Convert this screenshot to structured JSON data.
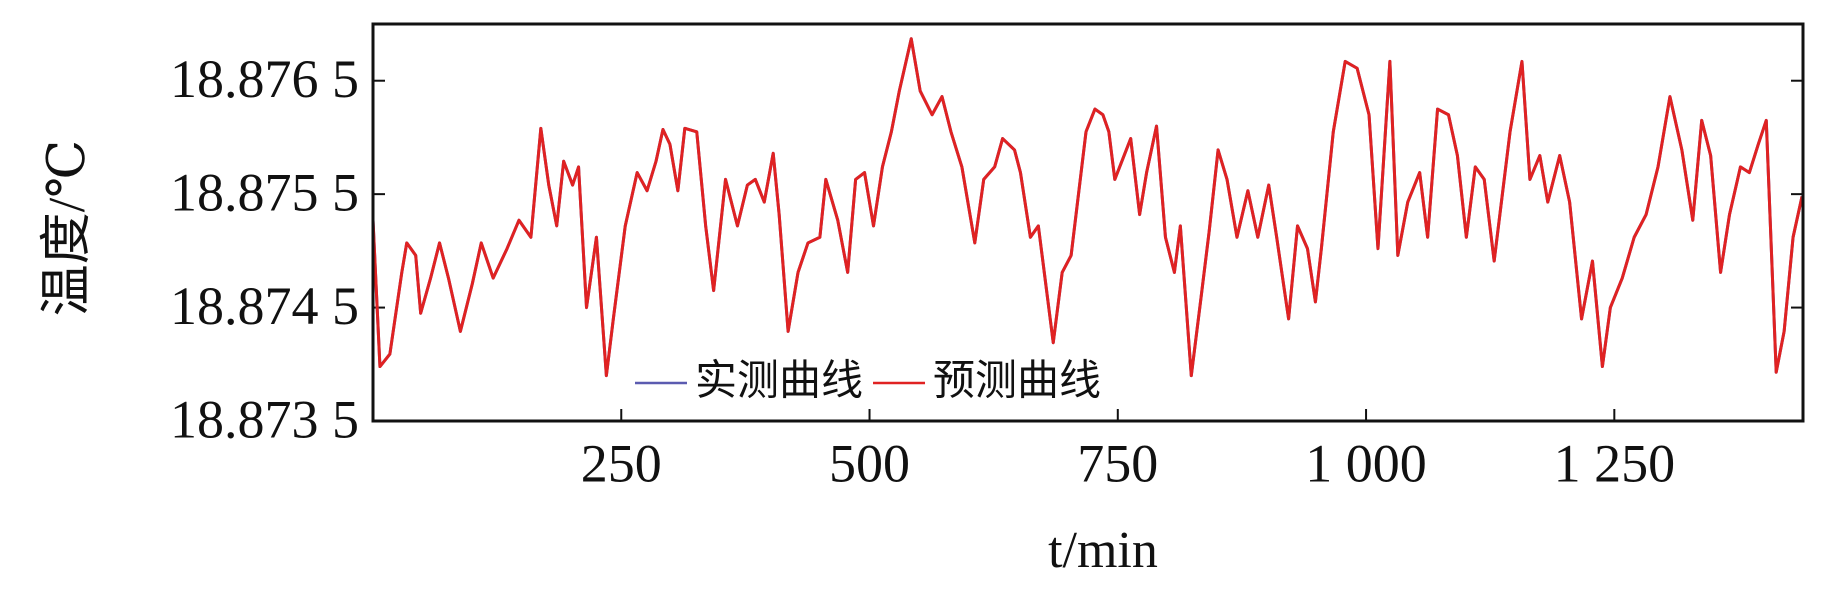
{
  "chart_data": {
    "type": "line",
    "xlabel": "t/min",
    "ylabel": "温度/℃",
    "xlim": [
      0,
      1440
    ],
    "ylim": [
      18.8735,
      18.877
    ],
    "xticks": [
      250,
      500,
      750,
      {
        "value": 1000,
        "label": "1 000"
      },
      {
        "value": 1250,
        "label": "1 250"
      }
    ],
    "yticks": [
      {
        "value": 18.8735,
        "label": "18.873 5"
      },
      {
        "value": 18.8745,
        "label": "18.874 5"
      },
      {
        "value": 18.8755,
        "label": "18.875 5"
      },
      {
        "value": 18.8765,
        "label": "18.876 5"
      }
    ],
    "legend": "lower left",
    "x": [
      0,
      7,
      17,
      29,
      34,
      43,
      48,
      58,
      67,
      76,
      88,
      100,
      109,
      121,
      135,
      147,
      159,
      169,
      177,
      185,
      192,
      201,
      207,
      215,
      225,
      235,
      242,
      254,
      266,
      276,
      285,
      292,
      299,
      307,
      314,
      326,
      335,
      343,
      355,
      367,
      377,
      385,
      394,
      403,
      409,
      418,
      428,
      438,
      450,
      456,
      468,
      478,
      486,
      495,
      504,
      513,
      522,
      530,
      542,
      551,
      563,
      573,
      582,
      593,
      606,
      615,
      626,
      634,
      646,
      652,
      662,
      670,
      685,
      694,
      703,
      718,
      727,
      735,
      741,
      747,
      763,
      772,
      779,
      789,
      798,
      807,
      813,
      824,
      834,
      842,
      851,
      860,
      870,
      881,
      891,
      902,
      910,
      922,
      931,
      941,
      949,
      955,
      967,
      979,
      991,
      1003,
      1012,
      1024,
      1032,
      1042,
      1054,
      1062,
      1072,
      1083,
      1092,
      1101,
      1110,
      1119,
      1129,
      1145,
      1157,
      1165,
      1175,
      1183,
      1195,
      1205,
      1217,
      1228,
      1238,
      1246,
      1258,
      1270,
      1282,
      1294,
      1306,
      1318,
      1329,
      1338,
      1347,
      1357,
      1366,
      1377,
      1386,
      1395,
      1403,
      1413,
      1421,
      1430,
      1439
    ],
    "series": [
      {
        "name": "实测曲线",
        "color": "#5b5bb0",
        "values": [
          18.87527,
          18.87398,
          18.87409,
          18.87481,
          18.87507,
          18.87496,
          18.87445,
          18.87476,
          18.87507,
          18.87476,
          18.87429,
          18.87471,
          18.87507,
          18.87476,
          18.87502,
          18.87527,
          18.87512,
          18.87608,
          18.87558,
          18.87522,
          18.87579,
          18.87558,
          18.87574,
          18.8745,
          18.87512,
          18.8739,
          18.8744,
          18.87522,
          18.87569,
          18.87553,
          18.87579,
          18.87607,
          18.87594,
          18.87553,
          18.87608,
          18.87605,
          18.87522,
          18.87465,
          18.87563,
          18.87522,
          18.87558,
          18.87563,
          18.87543,
          18.87586,
          18.87532,
          18.87429,
          18.87481,
          18.87507,
          18.87512,
          18.87563,
          18.87527,
          18.87481,
          18.87563,
          18.87569,
          18.87522,
          18.87574,
          18.87605,
          18.87641,
          18.87687,
          18.87641,
          18.8762,
          18.87636,
          18.87605,
          18.87574,
          18.87507,
          18.87563,
          18.87574,
          18.87599,
          18.87589,
          18.87569,
          18.87512,
          18.87522,
          18.87419,
          18.87481,
          18.87496,
          18.87605,
          18.87625,
          18.8762,
          18.87605,
          18.87563,
          18.87599,
          18.87532,
          18.87569,
          18.8761,
          18.87512,
          18.87481,
          18.87522,
          18.8739,
          18.8746,
          18.87517,
          18.87589,
          18.87563,
          18.87512,
          18.87553,
          18.87512,
          18.87558,
          18.87512,
          18.8744,
          18.87522,
          18.87502,
          18.87455,
          18.87502,
          18.87605,
          18.87667,
          18.87661,
          18.8762,
          18.87502,
          18.87667,
          18.87496,
          18.87543,
          18.87569,
          18.87512,
          18.87625,
          18.8762,
          18.87584,
          18.87512,
          18.87574,
          18.87563,
          18.87491,
          18.87605,
          18.87667,
          18.87563,
          18.87584,
          18.87543,
          18.87584,
          18.87543,
          18.8744,
          18.87491,
          18.87398,
          18.8745,
          18.87476,
          18.87512,
          18.87532,
          18.87574,
          18.87636,
          18.87589,
          18.87527,
          18.87615,
          18.87584,
          18.87481,
          18.87532,
          18.87574,
          18.87569,
          18.87594,
          18.87615,
          18.87393,
          18.87429,
          18.87512,
          18.87548
        ]
      },
      {
        "name": "预测曲线",
        "color": "#e02222",
        "values": [
          18.87527,
          18.87398,
          18.87409,
          18.87481,
          18.87507,
          18.87496,
          18.87445,
          18.87476,
          18.87507,
          18.87476,
          18.87429,
          18.87471,
          18.87507,
          18.87476,
          18.87502,
          18.87527,
          18.87512,
          18.87608,
          18.87558,
          18.87522,
          18.87579,
          18.87558,
          18.87574,
          18.8745,
          18.87512,
          18.8739,
          18.8744,
          18.87522,
          18.87569,
          18.87553,
          18.87579,
          18.87607,
          18.87594,
          18.87553,
          18.87608,
          18.87605,
          18.87522,
          18.87465,
          18.87563,
          18.87522,
          18.87558,
          18.87563,
          18.87543,
          18.87586,
          18.87532,
          18.87429,
          18.87481,
          18.87507,
          18.87512,
          18.87563,
          18.87527,
          18.87481,
          18.87563,
          18.87569,
          18.87522,
          18.87574,
          18.87605,
          18.87641,
          18.87687,
          18.87641,
          18.8762,
          18.87636,
          18.87605,
          18.87574,
          18.87507,
          18.87563,
          18.87574,
          18.87599,
          18.87589,
          18.87569,
          18.87512,
          18.87522,
          18.87419,
          18.87481,
          18.87496,
          18.87605,
          18.87625,
          18.8762,
          18.87605,
          18.87563,
          18.87599,
          18.87532,
          18.87569,
          18.8761,
          18.87512,
          18.87481,
          18.87522,
          18.8739,
          18.8746,
          18.87517,
          18.87589,
          18.87563,
          18.87512,
          18.87553,
          18.87512,
          18.87558,
          18.87512,
          18.8744,
          18.87522,
          18.87502,
          18.87455,
          18.87502,
          18.87605,
          18.87667,
          18.87661,
          18.8762,
          18.87502,
          18.87667,
          18.87496,
          18.87543,
          18.87569,
          18.87512,
          18.87625,
          18.8762,
          18.87584,
          18.87512,
          18.87574,
          18.87563,
          18.87491,
          18.87605,
          18.87667,
          18.87563,
          18.87584,
          18.87543,
          18.87584,
          18.87543,
          18.8744,
          18.87491,
          18.87398,
          18.8745,
          18.87476,
          18.87512,
          18.87532,
          18.87574,
          18.87636,
          18.87589,
          18.87527,
          18.87615,
          18.87584,
          18.87481,
          18.87532,
          18.87574,
          18.87569,
          18.87594,
          18.87615,
          18.87393,
          18.87429,
          18.87512,
          18.87548
        ]
      }
    ]
  }
}
